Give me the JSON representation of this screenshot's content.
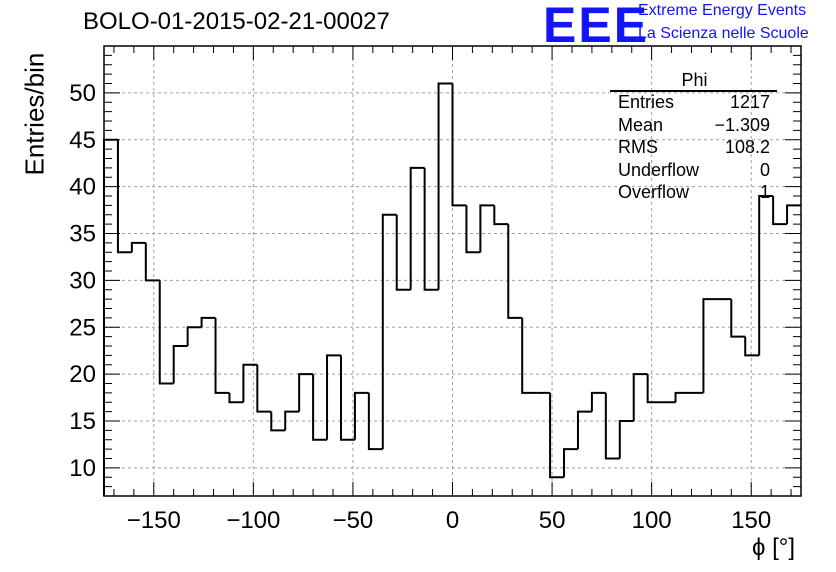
{
  "header": {
    "title": "BOLO-01-2015-02-21-00027",
    "logo_mark": "EEE",
    "logo_line1": "Extreme Energy Events",
    "logo_line2": "La Scienza nelle Scuole"
  },
  "stats": {
    "title": "Phi",
    "rows": [
      {
        "label": "Entries",
        "value": "1217"
      },
      {
        "label": "Mean",
        "value": "−1.309"
      },
      {
        "label": "RMS",
        "value": "108.2"
      },
      {
        "label": "Underflow",
        "value": "0"
      },
      {
        "label": "Overflow",
        "value": "1"
      }
    ]
  },
  "chart_data": {
    "type": "histogram",
    "title": "BOLO-01-2015-02-21-00027",
    "xlabel": "ϕ [°]",
    "ylabel": "Entries/bin",
    "xlim": [
      -175,
      175
    ],
    "ylim": [
      7,
      55
    ],
    "grid": true,
    "x_ticks": [
      -150,
      -100,
      -50,
      0,
      50,
      100,
      150
    ],
    "x_tick_labels": [
      "−150",
      "−100",
      "−50",
      "0",
      "50",
      "100",
      "150"
    ],
    "y_ticks": [
      10,
      15,
      20,
      25,
      30,
      35,
      40,
      45,
      50
    ],
    "bin_edges": [
      -175,
      -168,
      -161,
      -154,
      -147,
      -140,
      -133,
      -126,
      -119,
      -112,
      -105,
      -98,
      -91,
      -84,
      -77,
      -70,
      -63,
      -56,
      -49,
      -42,
      -35,
      -28,
      -21,
      -14,
      -7,
      0,
      7,
      14,
      21,
      28,
      35,
      42,
      49,
      56,
      63,
      70,
      77,
      84,
      91,
      98,
      105,
      112,
      119,
      126,
      133,
      140,
      147,
      154,
      161,
      168,
      175
    ],
    "series": [
      {
        "values": [
          45,
          33,
          34,
          30,
          19,
          23,
          25,
          26,
          18,
          17,
          21,
          16,
          14,
          16,
          20,
          13,
          22,
          13,
          18,
          12,
          37,
          29,
          42,
          29,
          51,
          38,
          33,
          38,
          36,
          26,
          18,
          18,
          9,
          12,
          16,
          18,
          11,
          15,
          20,
          17,
          17,
          18,
          18,
          28,
          28,
          24,
          22,
          39,
          36,
          38
        ]
      }
    ],
    "line_color": "#000000"
  }
}
